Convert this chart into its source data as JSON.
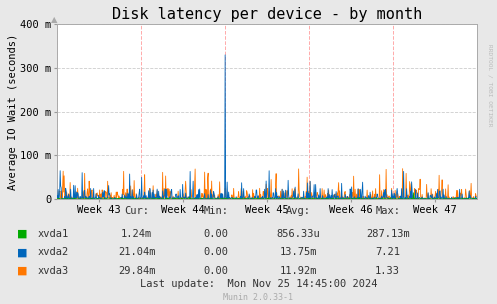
{
  "title": "Disk latency per device - by month",
  "ylabel": "Average IO Wait (seconds)",
  "rrdtool_label": "RRDTOOL / TOBI OETIKER",
  "munin_label": "Munin 2.0.33-1",
  "bg_color": "#e8e8e8",
  "plot_bg_color": "#ffffff",
  "grid_color_h": "#cccccc",
  "grid_color_v": "#ffaaaa",
  "ylim": [
    0,
    400
  ],
  "ytick_labels": [
    "0",
    "100 m",
    "200 m",
    "300 m",
    "400 m"
  ],
  "week_labels": [
    "Week 43",
    "Week 44",
    "Week 45",
    "Week 46",
    "Week 47"
  ],
  "colors": {
    "xvda1": "#00aa00",
    "xvda2": "#0066bb",
    "xvda3": "#ff7700"
  },
  "table_headers": [
    "Cur:",
    "Min:",
    "Avg:",
    "Max:"
  ],
  "table_data": [
    [
      "1.24m",
      "0.00",
      "856.33u",
      "287.13m"
    ],
    [
      "21.04m",
      "0.00",
      "13.75m",
      "7.21"
    ],
    [
      "29.84m",
      "0.00",
      "11.92m",
      "1.33"
    ]
  ],
  "last_update": "Last update:  Mon Nov 25 14:45:00 2024",
  "title_fontsize": 11,
  "label_fontsize": 7.5,
  "tick_fontsize": 7.5,
  "table_fontsize": 7.5
}
